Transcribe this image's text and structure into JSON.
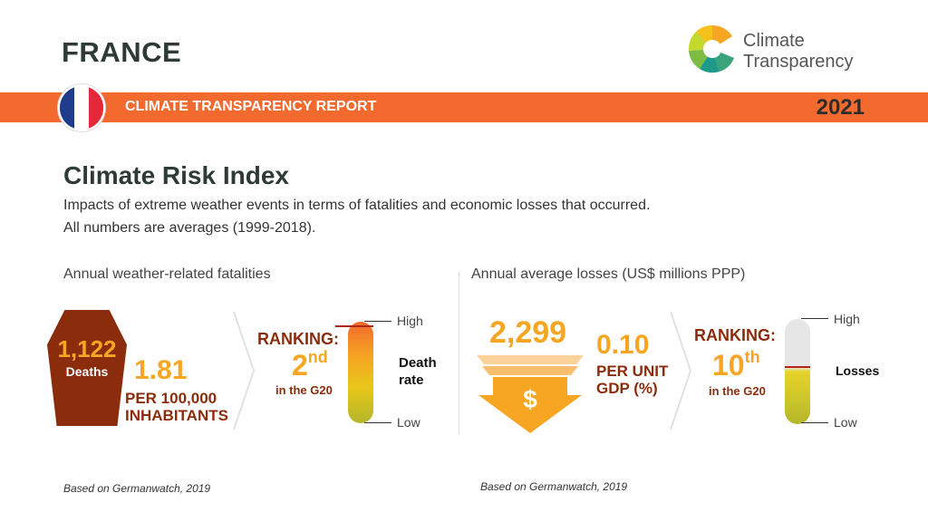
{
  "header": {
    "country": "FRANCE",
    "banner_title": "CLIMATE TRANSPARENCY REPORT",
    "year": "2021",
    "logo_line1": "Climate",
    "logo_line2": "Transparency"
  },
  "colors": {
    "banner": "#f26a2e",
    "accent_orange": "#f6a623",
    "rust": "#8b2c0c",
    "flag": [
      "#1f3c8c",
      "#ffffff",
      "#e4283a"
    ]
  },
  "section": {
    "title": "Climate Risk Index",
    "desc_line1": "Impacts of extreme weather events in terms of fatalities and economic losses that occurred.",
    "desc_line2": "All numbers are averages (1999-2018)."
  },
  "fatalities": {
    "heading": "Annual weather-related fatalities",
    "deaths_value": "1,122",
    "deaths_label": "Deaths",
    "per_capita_value": "1.81",
    "per_capita_line1": "PER 100,000",
    "per_capita_line2": "INHABITANTS",
    "ranking_label": "RANKING:",
    "rank_num": "2",
    "rank_suffix": "nd",
    "rank_sub": "in the G20",
    "gauge_label_line1": "Death",
    "gauge_label_line2": "rate",
    "gauge_high": "High",
    "gauge_low": "Low",
    "gauge_level": 0.95,
    "source": "Based on Germanwatch, 2019"
  },
  "losses": {
    "heading": "Annual average losses (US$ millions PPP)",
    "value": "2,299",
    "currency_symbol": "$",
    "per_gdp_value": "0.10",
    "per_gdp_line1": "PER UNIT",
    "per_gdp_line2": "GDP (%)",
    "ranking_label": "RANKING:",
    "rank_num": "10",
    "rank_suffix": "th",
    "rank_sub": "in the G20",
    "gauge_label": "Losses",
    "gauge_high": "High",
    "gauge_low": "Low",
    "gauge_level": 0.55,
    "source": "Based on Germanwatch, 2019"
  }
}
